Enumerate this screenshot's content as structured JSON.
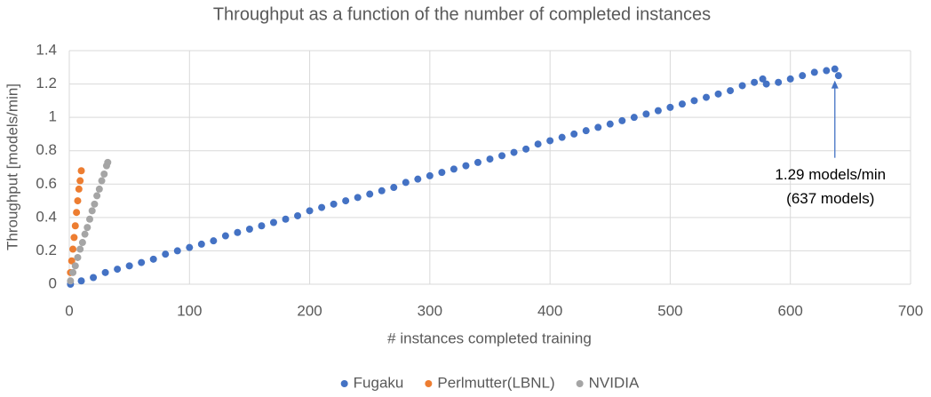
{
  "chart_data": {
    "type": "scatter",
    "title": "Throughput as a function of the number of completed instances",
    "x_label": "# instances completed training",
    "y_label": "Throughput [models/min]",
    "xlim": [
      0,
      700
    ],
    "ylim": [
      0,
      1.4
    ],
    "xticks": [
      0,
      100,
      200,
      300,
      400,
      500,
      600,
      700
    ],
    "yticks": [
      0,
      0.2,
      0.4,
      0.6,
      0.8,
      1,
      1.2,
      1.4
    ],
    "grid": true,
    "legend": "bottom",
    "series": [
      {
        "name": "Fugaku",
        "color": "#4472c4",
        "x": [
          1,
          10,
          20,
          30,
          40,
          50,
          60,
          70,
          80,
          90,
          100,
          110,
          120,
          130,
          140,
          150,
          160,
          170,
          180,
          190,
          200,
          210,
          220,
          230,
          240,
          250,
          260,
          270,
          280,
          290,
          300,
          310,
          320,
          330,
          340,
          350,
          360,
          370,
          380,
          390,
          400,
          410,
          420,
          430,
          440,
          450,
          460,
          470,
          480,
          490,
          500,
          510,
          520,
          530,
          540,
          550,
          560,
          570,
          577,
          580,
          590,
          600,
          610,
          620,
          630,
          637,
          640
        ],
        "values": [
          0.0,
          0.02,
          0.04,
          0.07,
          0.09,
          0.11,
          0.13,
          0.15,
          0.18,
          0.2,
          0.22,
          0.24,
          0.26,
          0.29,
          0.31,
          0.33,
          0.35,
          0.37,
          0.39,
          0.41,
          0.44,
          0.46,
          0.48,
          0.5,
          0.52,
          0.54,
          0.56,
          0.58,
          0.61,
          0.63,
          0.65,
          0.67,
          0.69,
          0.71,
          0.73,
          0.75,
          0.77,
          0.79,
          0.81,
          0.84,
          0.86,
          0.88,
          0.9,
          0.92,
          0.94,
          0.96,
          0.98,
          1.0,
          1.02,
          1.04,
          1.06,
          1.08,
          1.1,
          1.12,
          1.14,
          1.16,
          1.19,
          1.21,
          1.23,
          1.2,
          1.21,
          1.23,
          1.25,
          1.27,
          1.28,
          1.29,
          1.25
        ]
      },
      {
        "name": "Perlmutter(LBNL)",
        "color": "#ed7d31",
        "x": [
          1,
          2,
          3,
          4,
          5,
          6,
          7,
          8,
          9,
          10
        ],
        "values": [
          0.07,
          0.14,
          0.21,
          0.28,
          0.35,
          0.43,
          0.5,
          0.57,
          0.62,
          0.68
        ]
      },
      {
        "name": "NVIDIA",
        "color": "#a5a5a5",
        "x": [
          1,
          3,
          5,
          7,
          9,
          11,
          13,
          15,
          17,
          19,
          21,
          23,
          25,
          27,
          29,
          31,
          32
        ],
        "values": [
          0.02,
          0.07,
          0.11,
          0.16,
          0.21,
          0.25,
          0.3,
          0.34,
          0.39,
          0.44,
          0.48,
          0.53,
          0.57,
          0.62,
          0.66,
          0.71,
          0.73
        ]
      }
    ],
    "annotation": {
      "lines": [
        "1.29 models/min",
        "(637 models)"
      ],
      "x": 637,
      "y": 1.29
    }
  }
}
